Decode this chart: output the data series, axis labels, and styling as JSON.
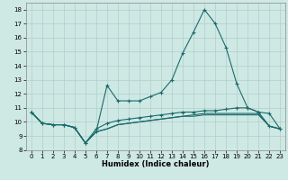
{
  "xlabel": "Humidex (Indice chaleur)",
  "xlim": [
    -0.5,
    23.5
  ],
  "ylim": [
    8.0,
    18.5
  ],
  "xticks": [
    0,
    1,
    2,
    3,
    4,
    5,
    6,
    7,
    8,
    9,
    10,
    11,
    12,
    13,
    14,
    15,
    16,
    17,
    18,
    19,
    20,
    21,
    22,
    23
  ],
  "yticks": [
    8,
    9,
    10,
    11,
    12,
    13,
    14,
    15,
    16,
    17,
    18
  ],
  "bg_color": "#cee8e4",
  "grid_color": "#b0cfcb",
  "line_color": "#1a6b6b",
  "lines": [
    [
      10.7,
      9.9,
      9.8,
      9.8,
      9.6,
      8.5,
      9.3,
      12.6,
      11.5,
      11.5,
      11.5,
      11.8,
      12.1,
      13.0,
      14.9,
      16.4,
      18.0,
      17.0,
      15.3,
      12.7,
      11.0,
      10.7,
      10.6,
      9.5
    ],
    [
      10.7,
      9.9,
      9.8,
      9.8,
      9.6,
      8.5,
      9.5,
      9.9,
      10.1,
      10.2,
      10.3,
      10.4,
      10.5,
      10.6,
      10.7,
      10.7,
      10.8,
      10.8,
      10.9,
      11.0,
      11.0,
      10.7,
      9.7,
      9.5
    ],
    [
      10.7,
      9.9,
      9.8,
      9.8,
      9.6,
      8.5,
      9.3,
      9.5,
      9.8,
      9.9,
      10.0,
      10.1,
      10.2,
      10.3,
      10.4,
      10.5,
      10.6,
      10.6,
      10.6,
      10.6,
      10.6,
      10.6,
      9.7,
      9.5
    ],
    [
      10.7,
      9.9,
      9.8,
      9.8,
      9.6,
      8.5,
      9.3,
      9.5,
      9.8,
      9.9,
      10.0,
      10.1,
      10.2,
      10.3,
      10.4,
      10.4,
      10.5,
      10.5,
      10.5,
      10.5,
      10.5,
      10.5,
      9.7,
      9.5
    ]
  ],
  "line_markers": [
    true,
    true,
    false,
    false
  ],
  "xlabel_fontsize": 6.0,
  "xlabel_bold": true,
  "tick_fontsize": 5.0,
  "linewidth": 0.8,
  "markersize": 3.0
}
